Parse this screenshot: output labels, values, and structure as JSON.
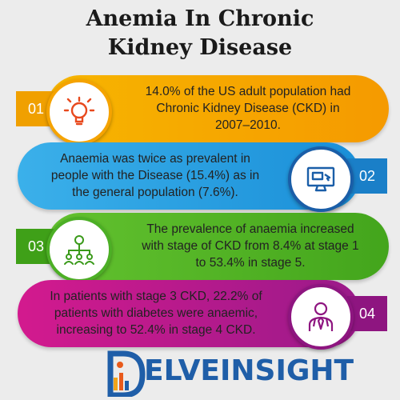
{
  "title_line1": "Anemia In Chronic",
  "title_line2": "Kidney Disease",
  "items": [
    {
      "num": "01",
      "icon": "lightbulb-icon",
      "color": "#f5a300",
      "text_lines": [
        "14.0% of the US adult population had",
        "Chronic Kidney Disease (CKD) in",
        "2007–2010."
      ]
    },
    {
      "num": "02",
      "icon": "monitor-icon",
      "color": "#1a8fd8",
      "text_lines": [
        "Anaemia was twice as prevalent in",
        "people with the Disease (15.4%) as in",
        "the general population (7.6%)."
      ]
    },
    {
      "num": "03",
      "icon": "network-people-icon",
      "color": "#4caf25",
      "text_lines": [
        "The prevalence of anaemia increased",
        "with stage of CKD from 8.4% at stage 1",
        "to 53.4% in stage 5."
      ]
    },
    {
      "num": "04",
      "icon": "doctor-icon",
      "color": "#b2158a",
      "text_lines": [
        "In patients with stage 3 CKD, 22.2% of",
        "patients with diabetes were anaemic,",
        "increasing to 52.4% in stage 4 CKD."
      ]
    }
  ],
  "logo_text": "ELVEINSIGHT"
}
